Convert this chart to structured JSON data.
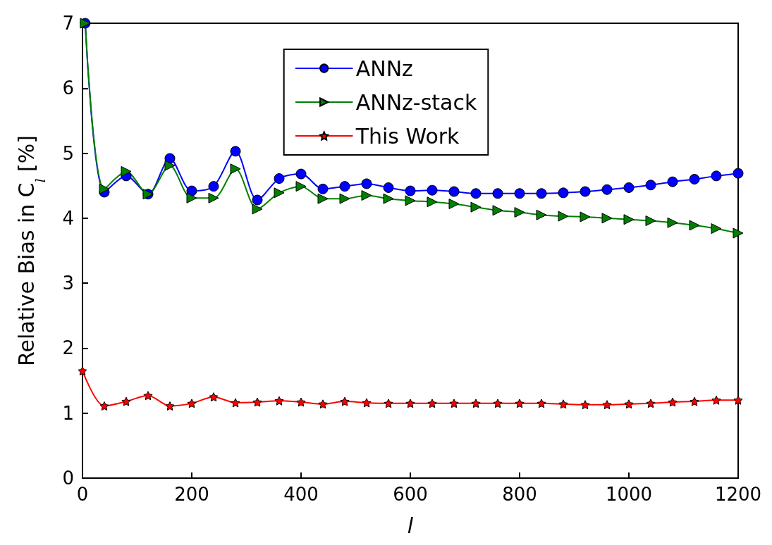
{
  "chart_data": {
    "type": "line",
    "xlabel": "l",
    "ylabel": "Relative Bias in C$_{l}$ [%]",
    "xlim": [
      0,
      1200
    ],
    "xticks": [
      0,
      200,
      400,
      600,
      800,
      1000,
      1200
    ],
    "ylim": [
      0,
      7
    ],
    "yticks": [
      0,
      1,
      2,
      3,
      4,
      5,
      6,
      7
    ],
    "grid": false,
    "legend": "top",
    "line_style": "solid",
    "series": [
      {
        "name": "ANNz",
        "color": "#0000ff",
        "marker": "circle",
        "x": [
          5,
          40,
          80,
          120,
          160,
          200,
          240,
          280,
          320,
          360,
          400,
          440,
          480,
          520,
          560,
          600,
          640,
          680,
          720,
          760,
          800,
          840,
          880,
          920,
          960,
          1000,
          1040,
          1080,
          1120,
          1160,
          1200
        ],
        "values": [
          7,
          4.4,
          4.65,
          4.37,
          4.92,
          4.42,
          4.49,
          5.03,
          4.28,
          4.61,
          4.68,
          4.45,
          4.49,
          4.53,
          4.47,
          4.42,
          4.43,
          4.41,
          4.38,
          4.38,
          4.38,
          4.38,
          4.39,
          4.41,
          4.44,
          4.47,
          4.51,
          4.56,
          4.6,
          4.65,
          4.69
        ]
      },
      {
        "name": "ANNz-stack",
        "color": "#008000",
        "marker": "triangle",
        "x": [
          5,
          40,
          80,
          120,
          160,
          200,
          240,
          280,
          320,
          360,
          400,
          440,
          480,
          520,
          560,
          600,
          640,
          680,
          720,
          760,
          800,
          840,
          880,
          920,
          960,
          1000,
          1040,
          1080,
          1120,
          1160,
          1200
        ],
        "values": [
          7,
          4.45,
          4.72,
          4.37,
          4.81,
          4.31,
          4.31,
          4.76,
          4.14,
          4.39,
          4.49,
          4.3,
          4.3,
          4.35,
          4.3,
          4.27,
          4.25,
          4.22,
          4.17,
          4.12,
          4.09,
          4.05,
          4.03,
          4.02,
          4.0,
          3.98,
          3.96,
          3.93,
          3.89,
          3.84,
          3.77
        ]
      },
      {
        "name": "This Work",
        "color": "#ff0000",
        "marker": "star",
        "x": [
          0,
          40,
          80,
          120,
          160,
          200,
          240,
          280,
          320,
          360,
          400,
          440,
          480,
          520,
          560,
          600,
          640,
          680,
          720,
          760,
          800,
          840,
          880,
          920,
          960,
          1000,
          1040,
          1080,
          1120,
          1160,
          1200
        ],
        "values": [
          1.65,
          1.11,
          1.18,
          1.27,
          1.11,
          1.15,
          1.25,
          1.16,
          1.17,
          1.19,
          1.17,
          1.14,
          1.18,
          1.16,
          1.15,
          1.15,
          1.15,
          1.15,
          1.15,
          1.15,
          1.15,
          1.15,
          1.14,
          1.13,
          1.13,
          1.14,
          1.15,
          1.17,
          1.18,
          1.2,
          1.2
        ]
      }
    ]
  }
}
